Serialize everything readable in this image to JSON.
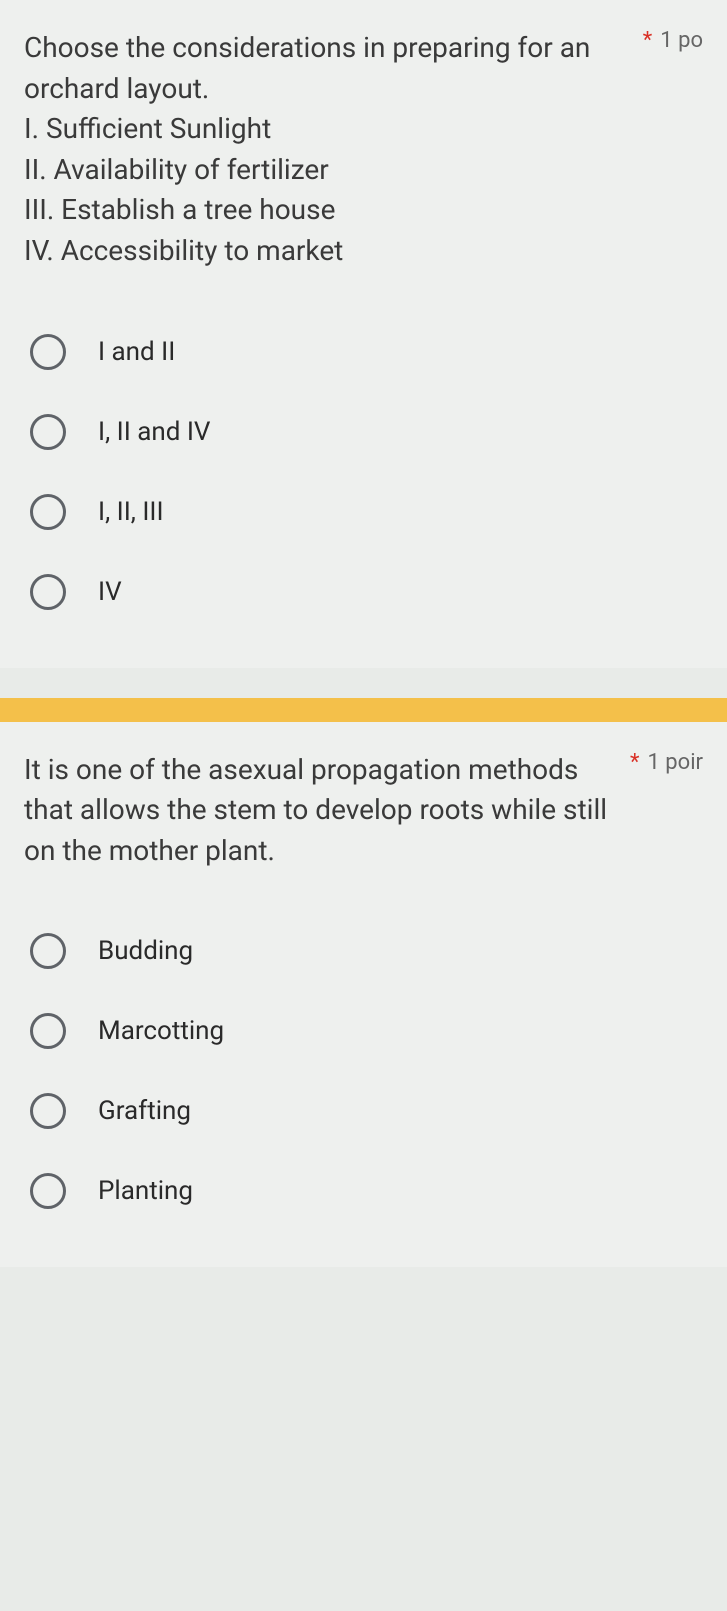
{
  "background_color": "#e8ebe8",
  "card_background": "#eef0ee",
  "divider_color": "#f4c04a",
  "radio_border_color": "#5f6368",
  "asterisk_color": "#d93025",
  "text_color": "#3a3a3a",
  "question1": {
    "text": "Choose the considerations in preparing for an orchard layout.\nI. Sufficient Sunlight\nII. Availability of fertilizer\nIII. Establish a tree house\nIV. Accessibility to market",
    "required_mark": "*",
    "points": "1 po",
    "options": [
      "I and II",
      "I, II and IV",
      "I, II, III",
      "IV"
    ]
  },
  "question2": {
    "text": "It is one of the asexual propagation methods that allows the stem to develop roots while still on the mother plant.",
    "required_mark": "*",
    "points": "1 poir",
    "options": [
      "Budding",
      "Marcotting",
      "Grafting",
      "Planting"
    ]
  }
}
